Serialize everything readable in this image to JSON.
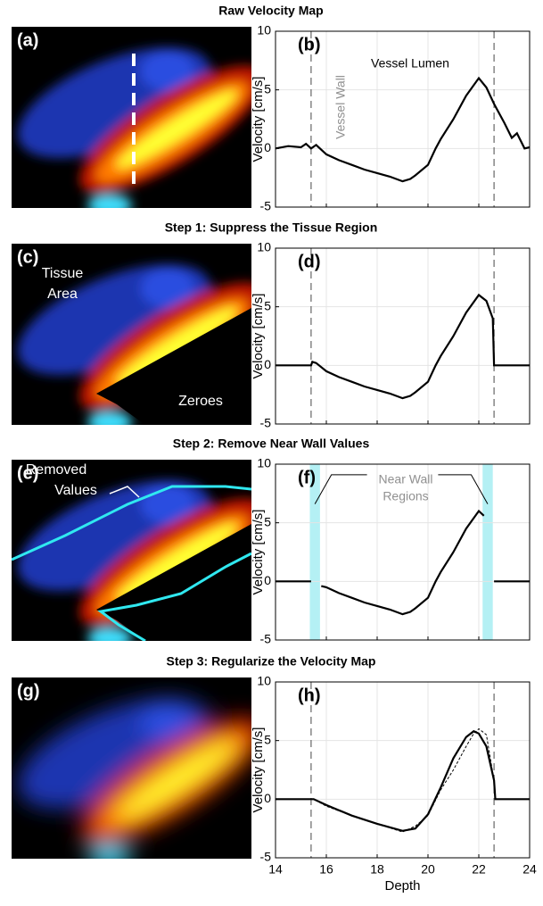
{
  "chart_data": [
    {
      "type": "line",
      "title": "Raw Velocity Map",
      "image_label": "(a)",
      "image_annotations": [],
      "panel_label": "(b)",
      "ylabel": "Velocity [cm/s]",
      "annotations": [
        "Vessel Wall",
        "Vessel Lumen"
      ],
      "x": [
        14,
        14.5,
        15,
        15.2,
        15.4,
        15.6,
        16,
        16.5,
        17,
        17.5,
        18,
        18.5,
        19,
        19.3,
        19.5,
        20,
        20.3,
        20.5,
        21,
        21.5,
        22,
        22.3,
        22.6,
        23,
        23.3,
        23.5,
        23.8,
        24
      ],
      "series": [
        {
          "color": "#000000",
          "values": [
            0,
            0.2,
            0.1,
            0.4,
            0,
            0.3,
            -0.5,
            -1,
            -1.4,
            -1.8,
            -2.1,
            -2.4,
            -2.8,
            -2.6,
            -2.3,
            -1.4,
            0,
            0.8,
            2.5,
            4.5,
            6,
            5.2,
            3.8,
            2.2,
            0.9,
            1.3,
            0,
            0.1
          ]
        }
      ],
      "vlines": [
        15.4,
        22.6
      ],
      "shaded": [],
      "xlim": [
        14,
        24
      ],
      "xticks": [
        14,
        16,
        18,
        20,
        22,
        24
      ],
      "ylim": [
        -5,
        10
      ],
      "yticks": [
        10,
        5,
        0,
        -5
      ],
      "grid": true
    },
    {
      "type": "line",
      "title": "Step 1: Suppress the Tissue Region",
      "image_label": "(c)",
      "image_annotations": [
        "Tissue",
        "Area",
        "Zeroes"
      ],
      "panel_label": "(d)",
      "ylabel": "Velocity [cm/s]",
      "annotations": [],
      "x": [
        14,
        15.4,
        15.45,
        15.6,
        16,
        16.5,
        17,
        17.5,
        18,
        18.5,
        19,
        19.3,
        19.5,
        20,
        20.3,
        20.5,
        21,
        21.5,
        22,
        22.3,
        22.55,
        22.6,
        24
      ],
      "series": [
        {
          "color": "#000000",
          "values": [
            0,
            0,
            0.3,
            0.2,
            -0.5,
            -1,
            -1.4,
            -1.8,
            -2.1,
            -2.4,
            -2.8,
            -2.6,
            -2.3,
            -1.4,
            0,
            0.8,
            2.5,
            4.5,
            6,
            5.5,
            4,
            0,
            0
          ]
        }
      ],
      "vlines": [
        15.4,
        22.6
      ],
      "shaded": [],
      "xlim": [
        14,
        24
      ],
      "xticks": [
        14,
        16,
        18,
        20,
        22,
        24
      ],
      "ylim": [
        -5,
        10
      ],
      "yticks": [
        10,
        5,
        0,
        -5
      ],
      "grid": true
    },
    {
      "type": "line",
      "title": "Step 2: Remove Near Wall Values",
      "image_label": "(e)",
      "image_annotations": [
        "Removed",
        "Values"
      ],
      "panel_label": "(f)",
      "ylabel": "Velocity [cm/s]",
      "annotations": [
        "Near Wall",
        "Regions"
      ],
      "x": [
        14,
        15.4,
        15.6,
        15.8,
        16,
        16.5,
        17,
        17.5,
        18,
        18.5,
        19,
        19.3,
        19.5,
        20,
        20.3,
        20.5,
        21,
        21.5,
        22,
        22.2,
        22.4,
        22.6,
        24
      ],
      "series": [
        {
          "color": "#000000",
          "values": [
            0,
            0,
            null,
            -0.4,
            -0.5,
            -1,
            -1.4,
            -1.8,
            -2.1,
            -2.4,
            -2.8,
            -2.6,
            -2.3,
            -1.4,
            0,
            0.8,
            2.5,
            4.5,
            6,
            5.6,
            null,
            0,
            0
          ]
        }
      ],
      "vlines": [],
      "shaded": [
        [
          15.35,
          15.75
        ],
        [
          22.15,
          22.55
        ]
      ],
      "shade_color": "#b4f0f4",
      "xlim": [
        14,
        24
      ],
      "xticks": [
        14,
        16,
        18,
        20,
        22,
        24
      ],
      "ylim": [
        -5,
        10
      ],
      "yticks": [
        10,
        5,
        0,
        -5
      ],
      "grid": true
    },
    {
      "type": "line",
      "title": "Step 3: Regularize the Velocity Map",
      "image_label": "(g)",
      "image_annotations": [],
      "panel_label": "(h)",
      "ylabel": "Velocity [cm/s]",
      "xlabel": "Depth",
      "annotations": [],
      "x": [
        14,
        15,
        15.5,
        16,
        17,
        18,
        19,
        19.5,
        20,
        20.5,
        21,
        21.5,
        21.8,
        22,
        22.3,
        22.6,
        22.65,
        24
      ],
      "series": [
        {
          "color": "#000000",
          "values": [
            0,
            0,
            0,
            -0.5,
            -1.4,
            -2.1,
            -2.7,
            -2.5,
            -1.3,
            1,
            3.5,
            5.3,
            5.8,
            5.6,
            4.5,
            1.6,
            0,
            0
          ]
        },
        {
          "color": "#000000",
          "dashed": true,
          "values": [
            0,
            0,
            0,
            -0.6,
            -1.4,
            -2.1,
            -2.8,
            -2.3,
            -1.4,
            0.8,
            2.5,
            4.5,
            5.6,
            6,
            5.5,
            1.6,
            0,
            0
          ]
        }
      ],
      "vlines": [
        15.4,
        22.6
      ],
      "shaded": [],
      "xlim": [
        14,
        24
      ],
      "xticks": [
        14,
        16,
        18,
        20,
        22,
        24
      ],
      "ylim": [
        -5,
        10
      ],
      "yticks": [
        10,
        5,
        0,
        -5
      ],
      "grid": true
    }
  ]
}
